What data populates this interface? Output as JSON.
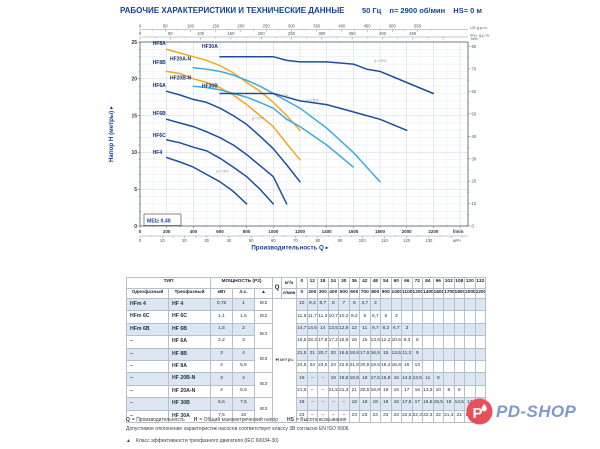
{
  "header": {
    "title": "РАБОЧИЕ ХАРАКТЕРИСТИКИ И ТЕХНИЧЕСКИЕ ДАННЫЕ",
    "frequency": "50 Гц",
    "speed": "n= 2900 об/мин",
    "suction": "HS= 0 м"
  },
  "chart_data": {
    "type": "line",
    "title": "",
    "mei_label": "MEI≥ 0,40",
    "colors": {
      "dark": "#1e4e9b",
      "orange": "#f2a71f",
      "light": "#3fa9dc"
    },
    "x_axis": {
      "title": "Производительность Q",
      "lmin": {
        "unit": "l/min",
        "ticks": [
          0,
          200,
          400,
          600,
          800,
          1000,
          1200,
          1400,
          1600,
          1800,
          2000,
          2200
        ]
      },
      "m3h": {
        "unit": "м³/ч",
        "ticks": [
          0,
          10,
          20,
          30,
          40,
          50,
          60,
          70,
          80,
          90,
          100,
          110,
          120,
          130
        ]
      },
      "us_gpm": {
        "unit": "US g.p.m.",
        "ticks": [
          0,
          50,
          100,
          150,
          200,
          250,
          300,
          350,
          400,
          450,
          500,
          550
        ]
      },
      "imp_gpm": {
        "unit": "Imp. g.p.m.",
        "ticks": [
          0,
          50,
          100,
          150,
          200,
          250,
          300,
          350,
          400,
          450
        ]
      }
    },
    "y_axis": {
      "title": "Напор H (метры)",
      "m": {
        "unit": "m",
        "ticks": [
          0,
          5,
          10,
          15,
          20,
          25
        ],
        "max": 25
      },
      "feet": {
        "unit": "feet",
        "ticks": [
          0,
          10,
          20,
          30,
          40,
          50,
          60,
          70,
          80
        ]
      }
    },
    "series": [
      {
        "name": "HF4",
        "color": "dark",
        "label_q": 95,
        "label_h": 9.8,
        "points": [
          [
            200,
            9.3
          ],
          [
            300,
            8.7
          ],
          [
            400,
            8
          ],
          [
            500,
            7
          ],
          [
            600,
            6
          ],
          [
            700,
            4.7
          ],
          [
            800,
            3
          ]
        ]
      },
      {
        "name": "HF6C",
        "color": "dark",
        "label_q": 95,
        "label_h": 12.1,
        "points": [
          [
            200,
            11.7
          ],
          [
            300,
            11.3
          ],
          [
            400,
            10.7
          ],
          [
            500,
            10.2
          ],
          [
            600,
            9.2
          ],
          [
            700,
            8
          ],
          [
            800,
            6.7
          ],
          [
            900,
            5
          ],
          [
            1000,
            3
          ]
        ]
      },
      {
        "name": "HF6B",
        "color": "dark",
        "label_q": 95,
        "label_h": 15.1,
        "points": [
          [
            200,
            14.5
          ],
          [
            300,
            14
          ],
          [
            400,
            13.5
          ],
          [
            500,
            12.8
          ],
          [
            600,
            12
          ],
          [
            700,
            11
          ],
          [
            800,
            9.7
          ],
          [
            900,
            8.2
          ],
          [
            1000,
            6.7
          ],
          [
            1100,
            3
          ]
        ]
      },
      {
        "name": "HF6A",
        "color": "dark",
        "label_q": 95,
        "label_h": 18.9,
        "points": [
          [
            200,
            18.3
          ],
          [
            300,
            17.8
          ],
          [
            400,
            17.2
          ],
          [
            500,
            16.8
          ],
          [
            600,
            16
          ],
          [
            700,
            15
          ],
          [
            800,
            13.8
          ],
          [
            900,
            12.2
          ],
          [
            1000,
            10.5
          ],
          [
            1100,
            8.3
          ],
          [
            1200,
            6
          ]
        ]
      },
      {
        "name": "HF8B",
        "color": "orange",
        "label_q": 95,
        "label_h": 22.0,
        "points": [
          [
            200,
            21
          ],
          [
            300,
            20.7
          ],
          [
            400,
            20
          ],
          [
            500,
            19.5
          ],
          [
            600,
            18.8
          ],
          [
            700,
            17.8
          ],
          [
            800,
            16.5
          ],
          [
            900,
            15
          ],
          [
            1000,
            13.5
          ],
          [
            1100,
            11.2
          ],
          [
            1200,
            9
          ]
        ]
      },
      {
        "name": "HF8A",
        "color": "orange",
        "label_q": 95,
        "label_h": 24.6,
        "points": [
          [
            200,
            24
          ],
          [
            300,
            23.5
          ],
          [
            400,
            23
          ],
          [
            500,
            22.5
          ],
          [
            600,
            21.8
          ],
          [
            700,
            20.8
          ],
          [
            800,
            19.5
          ],
          [
            900,
            18.3
          ],
          [
            1000,
            16.8
          ],
          [
            1100,
            15
          ],
          [
            1200,
            13
          ]
        ]
      },
      {
        "name": "HF20B-N",
        "color": "light",
        "label_q": 225,
        "label_h": 19.9,
        "points": [
          [
            400,
            19
          ],
          [
            500,
            18.8
          ],
          [
            600,
            18.5
          ],
          [
            700,
            18
          ],
          [
            800,
            17.5
          ],
          [
            900,
            16.8
          ],
          [
            1000,
            16
          ],
          [
            1100,
            14.5
          ],
          [
            1200,
            13.5
          ],
          [
            1400,
            11
          ],
          [
            1600,
            8
          ]
        ]
      },
      {
        "name": "HF20A-N",
        "color": "light",
        "label_q": 225,
        "label_h": 22.5,
        "points": [
          [
            400,
            21.5
          ],
          [
            500,
            21.3
          ],
          [
            600,
            21
          ],
          [
            700,
            20.5
          ],
          [
            800,
            19.8
          ],
          [
            900,
            19
          ],
          [
            1000,
            18
          ],
          [
            1100,
            17
          ],
          [
            1200,
            16
          ],
          [
            1400,
            13.3
          ],
          [
            1600,
            10
          ],
          [
            1700,
            8
          ],
          [
            1800,
            6
          ]
        ]
      },
      {
        "name": "HF30B",
        "color": "dark",
        "label_q": 465,
        "label_h": 18.8,
        "points": [
          [
            600,
            18
          ],
          [
            700,
            18
          ],
          [
            800,
            18
          ],
          [
            900,
            18
          ],
          [
            1000,
            18
          ],
          [
            1100,
            17.5
          ],
          [
            1200,
            17
          ],
          [
            1400,
            16.5
          ],
          [
            1600,
            15.5
          ],
          [
            1700,
            15
          ],
          [
            1800,
            14.5
          ],
          [
            2000,
            13
          ]
        ]
      },
      {
        "name": "HF30A",
        "color": "dark",
        "label_q": 465,
        "label_h": 24.2,
        "points": [
          [
            600,
            23
          ],
          [
            700,
            23
          ],
          [
            800,
            23
          ],
          [
            900,
            23
          ],
          [
            1000,
            23
          ],
          [
            1100,
            22.5
          ],
          [
            1200,
            22.3
          ],
          [
            1400,
            22.3
          ],
          [
            1600,
            22
          ],
          [
            1700,
            21.3
          ],
          [
            1800,
            21
          ],
          [
            2000,
            19.5
          ],
          [
            2200,
            18
          ]
        ]
      }
    ],
    "efficiency_labels": [
      {
        "text": "η=73%",
        "q": 570,
        "h": 7.3
      },
      {
        "text": "η=77%",
        "q": 840,
        "h": 14.5
      },
      {
        "text": "η=77%",
        "q": 1020,
        "h": 17.5
      },
      {
        "text": "η=78%",
        "q": 1245,
        "h": 16.9
      },
      {
        "text": "η=78%",
        "q": 1755,
        "h": 22.3
      }
    ]
  },
  "table": {
    "type_header": "ТИП",
    "col_single": "Однофазный",
    "col_three": "Трехфазный",
    "power_header": "МОЩНОСТЬ (P2)",
    "col_kw": "кВт",
    "col_hp": "л.с.",
    "col_ie": "▲",
    "q_label": "Q",
    "q_unit_top": "м³/ч",
    "q_unit_bottom": "л/мин",
    "h_label_main": "H",
    "h_label_sub": "метры",
    "q_m3h": [
      "0",
      "12",
      "18",
      "24",
      "30",
      "36",
      "42",
      "48",
      "54",
      "60",
      "66",
      "72",
      "84",
      "96",
      "102",
      "108",
      "120",
      "132"
    ],
    "q_lmin": [
      "0",
      "200",
      "300",
      "400",
      "500",
      "600",
      "700",
      "800",
      "900",
      "1000",
      "1100",
      "1200",
      "1400",
      "1600",
      "1700",
      "1800",
      "2000",
      "2200"
    ],
    "rows": [
      {
        "single": "HFm 4",
        "three": "HF 4",
        "kw": "0,75",
        "hp": "1",
        "ie": "IE2",
        "ie_span": 1,
        "h": [
          "10",
          "9,3",
          "8,7",
          "8",
          "7",
          "6",
          "4,7",
          "3",
          "",
          "",
          "",
          "",
          "",
          "",
          "",
          "",
          "",
          ""
        ]
      },
      {
        "single": "HFm 6C",
        "three": "HF 6C",
        "kw": "1,1",
        "hp": "1,5",
        "ie": "IE2",
        "ie_span": 1,
        "h": [
          "11,9",
          "11,7",
          "11,3",
          "10,7",
          "10,2",
          "9,2",
          "8",
          "6,7",
          "5",
          "3",
          "",
          "",
          "",
          "",
          "",
          "",
          "",
          ""
        ]
      },
      {
        "single": "HFm 6B",
        "three": "HF 6B",
        "kw": "1,5",
        "hp": "2",
        "ie": "IE3",
        "ie_span": 2,
        "h": [
          "14,7",
          "14,5",
          "14",
          "13,5",
          "12,8",
          "12",
          "11",
          "9,7",
          "8,2",
          "6,7",
          "3",
          "",
          "",
          "",
          "",
          "",
          "",
          ""
        ]
      },
      {
        "single": "–",
        "three": "HF 6A",
        "kw": "2,2",
        "hp": "3",
        "ie": null,
        "h": [
          "18,5",
          "18,3",
          "17,8",
          "17,2",
          "16,8",
          "16",
          "15",
          "13,8",
          "12,2",
          "10,5",
          "8,3",
          "6",
          "",
          "",
          "",
          "",
          "",
          ""
        ]
      },
      {
        "single": "–",
        "three": "HF 8B",
        "kw": "3",
        "hp": "4",
        "ie": "IE3",
        "ie_span": 2,
        "h": [
          "21,5",
          "21",
          "20,7",
          "20",
          "19,5",
          "18,8",
          "17,8",
          "16,5",
          "15",
          "13,5",
          "11,2",
          "9",
          "",
          "",
          "",
          "",
          "",
          ""
        ]
      },
      {
        "single": "–",
        "three": "HF 8A",
        "kw": "4",
        "hp": "5,5",
        "ie": null,
        "h": [
          "24,5",
          "24",
          "23,5",
          "23",
          "22,5",
          "21,8",
          "20,8",
          "19,5",
          "18,3",
          "16,8",
          "15",
          "13",
          "",
          "",
          "",
          "",
          "",
          ""
        ]
      },
      {
        "single": "–",
        "three": "HF 20B-N",
        "kw": "3",
        "hp": "4",
        "ie": "IE3",
        "ie_span": 2,
        "h": [
          "19",
          "–",
          "–",
          "19",
          "18,8",
          "18,5",
          "18",
          "17,5",
          "16,8",
          "16",
          "14,5",
          "13,5",
          "11",
          "8",
          "",
          "",
          "",
          ""
        ]
      },
      {
        "single": "–",
        "three": "HF 20A-N",
        "kw": "4",
        "hp": "5,5",
        "ie": null,
        "h": [
          "21,5",
          "–",
          "–",
          "21,5",
          "21,3",
          "21",
          "20,5",
          "19,8",
          "19",
          "18",
          "17",
          "16",
          "13,3",
          "10",
          "8",
          "6",
          "",
          ""
        ]
      },
      {
        "single": "–",
        "three": "HF 30B",
        "kw": "5,5",
        "hp": "7,5",
        "ie": "IE3",
        "ie_span": 2,
        "h": [
          "18",
          "–",
          "–",
          "–",
          "–",
          "18",
          "18",
          "18",
          "18",
          "18",
          "17,5",
          "17",
          "16,5",
          "15,5",
          "15",
          "14,5",
          "13",
          ""
        ]
      },
      {
        "single": "–",
        "three": "HF 30A",
        "kw": "7,5",
        "hp": "10",
        "ie": null,
        "h": [
          "23",
          "–",
          "–",
          "–",
          "–",
          "23",
          "23",
          "23",
          "23",
          "23",
          "22,5",
          "22,3",
          "22,3",
          "22",
          "21,3",
          "21",
          "19,5",
          "18"
        ]
      }
    ]
  },
  "footnotes": {
    "legend": [
      {
        "term": "Q",
        "desc": "= Производительность"
      },
      {
        "term": "H",
        "desc": "= Общий манометрический напор"
      },
      {
        "term": "HS",
        "desc": "= Высота всасывания"
      }
    ],
    "tolerance": "Допустимое отклонение характеристик насосов соответствует классу 3B согласно EN ISO 9906.",
    "ie_symbol": "▲",
    "ie_note": "Класс эффективности трехфазного двигателя (IEC 60034-30)"
  },
  "logo": {
    "text": "PD-SHOP",
    "circle_color": "#e94f5a",
    "text_color": "#7d99cf"
  }
}
